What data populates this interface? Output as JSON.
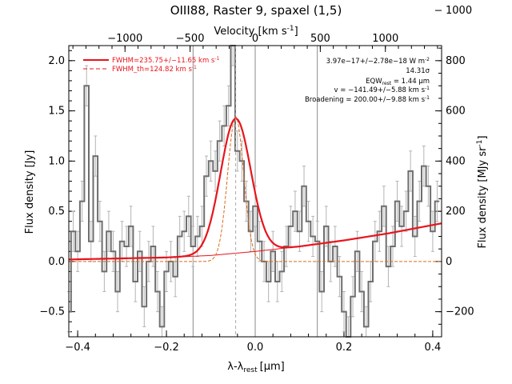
{
  "chart_data": {
    "type": "line",
    "title": "OIII88, Raster 9, spaxel (1,5)",
    "xlabel_main": "λ-λ",
    "xlabel_sub": "rest",
    "xlabel_unit": "[μm]",
    "ylabel_left": "Flux density [Jy]",
    "top_axis_label_main": "Velocity [km s",
    "top_axis_label_exp": "-1",
    "top_axis_label_close": "]",
    "right_axis_label_main": "Flux density [MJy sr",
    "right_axis_label_exp": "-1",
    "right_axis_label_close": "]",
    "xlim": [
      -0.42,
      0.42
    ],
    "ylim": [
      -0.75,
      2.15
    ],
    "x_ticks": [
      -0.4,
      -0.2,
      0.0,
      0.2,
      0.4
    ],
    "x_tick_labels": [
      "−0.4",
      "−0.2",
      "0.0",
      "0.2",
      "0.4"
    ],
    "y_ticks": [
      -0.5,
      0.0,
      0.5,
      1.0,
      1.5,
      2.0
    ],
    "y_tick_labels": [
      "−0.5",
      "0.0",
      "0.5",
      "1.0",
      "1.5",
      "2.0"
    ],
    "top_ticks_velocity": [
      -1000,
      -500,
      0,
      500,
      1000
    ],
    "top_tick_labels": [
      "−1000",
      "−500",
      "0",
      "500",
      "1000"
    ],
    "top_velocity_per_micron": 3409,
    "right_ticks": [
      -200,
      0,
      200,
      400,
      600,
      800,
      1000
    ],
    "right_tick_labels": [
      "−200",
      "0",
      "200",
      "400",
      "600",
      "800",
      "1000"
    ],
    "right_units_per_jy": 400,
    "vertical_lines": [
      -0.14,
      0.0,
      0.14
    ],
    "line_center": -0.044,
    "legend": {
      "fwhm_main": "FWHM=235.75+/−11.65 km s",
      "fwhm_exp": "-1",
      "fwhm_th_main": "FWHM_th=124.82 km s",
      "fwhm_th_exp": "-1"
    },
    "annotations": {
      "flux_main": "3.97e−17+/−2.78e−18 W m",
      "flux_exp": "-2",
      "sigma": "14.31σ",
      "eqw_main": "EQW",
      "eqw_sub": "rest",
      "eqw_rest": " = 1.44 μm",
      "velocity_main": "v = −141.49+/−5.88 km s",
      "velocity_exp": "-1",
      "broadening_main": "Broadening = 200.00+/−9.88 km s",
      "broadening_exp": "-1"
    },
    "series": [
      {
        "name": "data",
        "x": [
          -0.42,
          -0.41,
          -0.4,
          -0.39,
          -0.38,
          -0.37,
          -0.36,
          -0.35,
          -0.34,
          -0.33,
          -0.32,
          -0.31,
          -0.3,
          -0.29,
          -0.28,
          -0.27,
          -0.26,
          -0.25,
          -0.24,
          -0.23,
          -0.22,
          -0.21,
          -0.2,
          -0.19,
          -0.18,
          -0.17,
          -0.16,
          -0.15,
          -0.14,
          -0.13,
          -0.12,
          -0.11,
          -0.1,
          -0.09,
          -0.08,
          -0.07,
          -0.06,
          -0.05,
          -0.04,
          -0.03,
          -0.02,
          -0.01,
          0.0,
          0.01,
          0.02,
          0.03,
          0.04,
          0.05,
          0.06,
          0.07,
          0.08,
          0.09,
          0.1,
          0.11,
          0.12,
          0.13,
          0.14,
          0.15,
          0.16,
          0.17,
          0.18,
          0.19,
          0.2,
          0.21,
          0.22,
          0.23,
          0.24,
          0.25,
          0.26,
          0.27,
          0.28,
          0.29,
          0.3,
          0.31,
          0.32,
          0.33,
          0.34,
          0.35,
          0.36,
          0.37,
          0.38,
          0.39,
          0.4,
          0.41
        ],
        "y": [
          -0.5,
          0.3,
          0.1,
          0.6,
          1.75,
          0.2,
          1.05,
          0.4,
          -0.1,
          0.3,
          0.1,
          -0.3,
          0.2,
          0.15,
          0.35,
          -0.2,
          0.1,
          -0.45,
          0.0,
          0.15,
          -0.3,
          -0.65,
          -0.1,
          0.0,
          -0.15,
          0.25,
          0.3,
          0.45,
          0.15,
          0.25,
          0.35,
          0.85,
          1.0,
          0.9,
          1.2,
          1.35,
          1.55,
          2.15,
          1.1,
          1.0,
          0.6,
          0.3,
          0.55,
          0.2,
          0.0,
          -0.2,
          0.1,
          -0.2,
          -0.1,
          0.15,
          0.35,
          0.5,
          0.3,
          0.75,
          0.4,
          0.25,
          0.2,
          -0.3,
          0.35,
          0.0,
          0.15,
          -0.15,
          -0.5,
          -0.75,
          -0.35,
          0.1,
          -0.3,
          -0.65,
          -0.2,
          0.2,
          0.3,
          0.55,
          -0.05,
          0.15,
          0.6,
          0.35,
          0.5,
          0.9,
          0.25,
          0.6,
          0.95,
          0.75,
          0.3,
          0.6
        ],
        "err": 0.2
      },
      {
        "name": "model",
        "amplitude": 1.34,
        "sigma": 0.0341,
        "baseline": [
          [
            -0.42,
            0.02
          ],
          [
            -0.2,
            0.04
          ],
          [
            -0.1,
            0.06
          ],
          [
            0.0,
            0.1
          ],
          [
            0.1,
            0.15
          ],
          [
            0.2,
            0.21
          ],
          [
            0.3,
            0.28
          ],
          [
            0.42,
            0.38
          ]
        ]
      },
      {
        "name": "thermal",
        "amplitude": 1.44,
        "sigma": 0.0181
      }
    ],
    "colors": {
      "data": "#6e6e6e",
      "error": "#b4b4b4",
      "model": "#e8141c",
      "thermal": "#dd6a18",
      "vline": "#8a8a8a"
    }
  }
}
